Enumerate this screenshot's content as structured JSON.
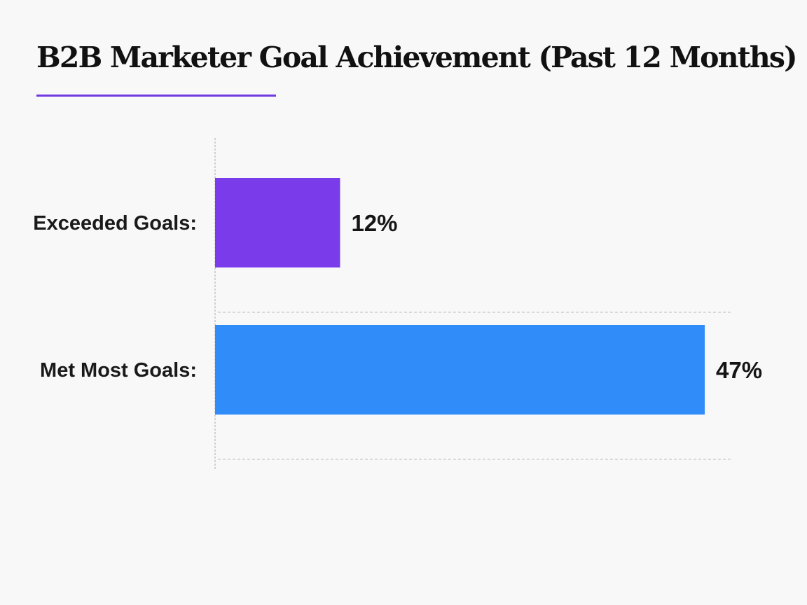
{
  "chart_data": {
    "type": "bar",
    "orientation": "horizontal",
    "title": "B2B Marketer Goal Achievement (Past 12 Months)",
    "categories": [
      "Exceeded Goals:",
      "Met Most Goals:"
    ],
    "values": [
      12,
      47
    ],
    "value_labels": [
      "12%",
      "47%"
    ],
    "colors": [
      "#7a3ceb",
      "#2f8cf9"
    ],
    "xlim": [
      0,
      47
    ],
    "grid": "dashed separators between bars",
    "legend": "none"
  },
  "colors": {
    "background": "#f8f8f9",
    "title_rule": "#6f3ae0",
    "axis": "#aaaaaa"
  }
}
